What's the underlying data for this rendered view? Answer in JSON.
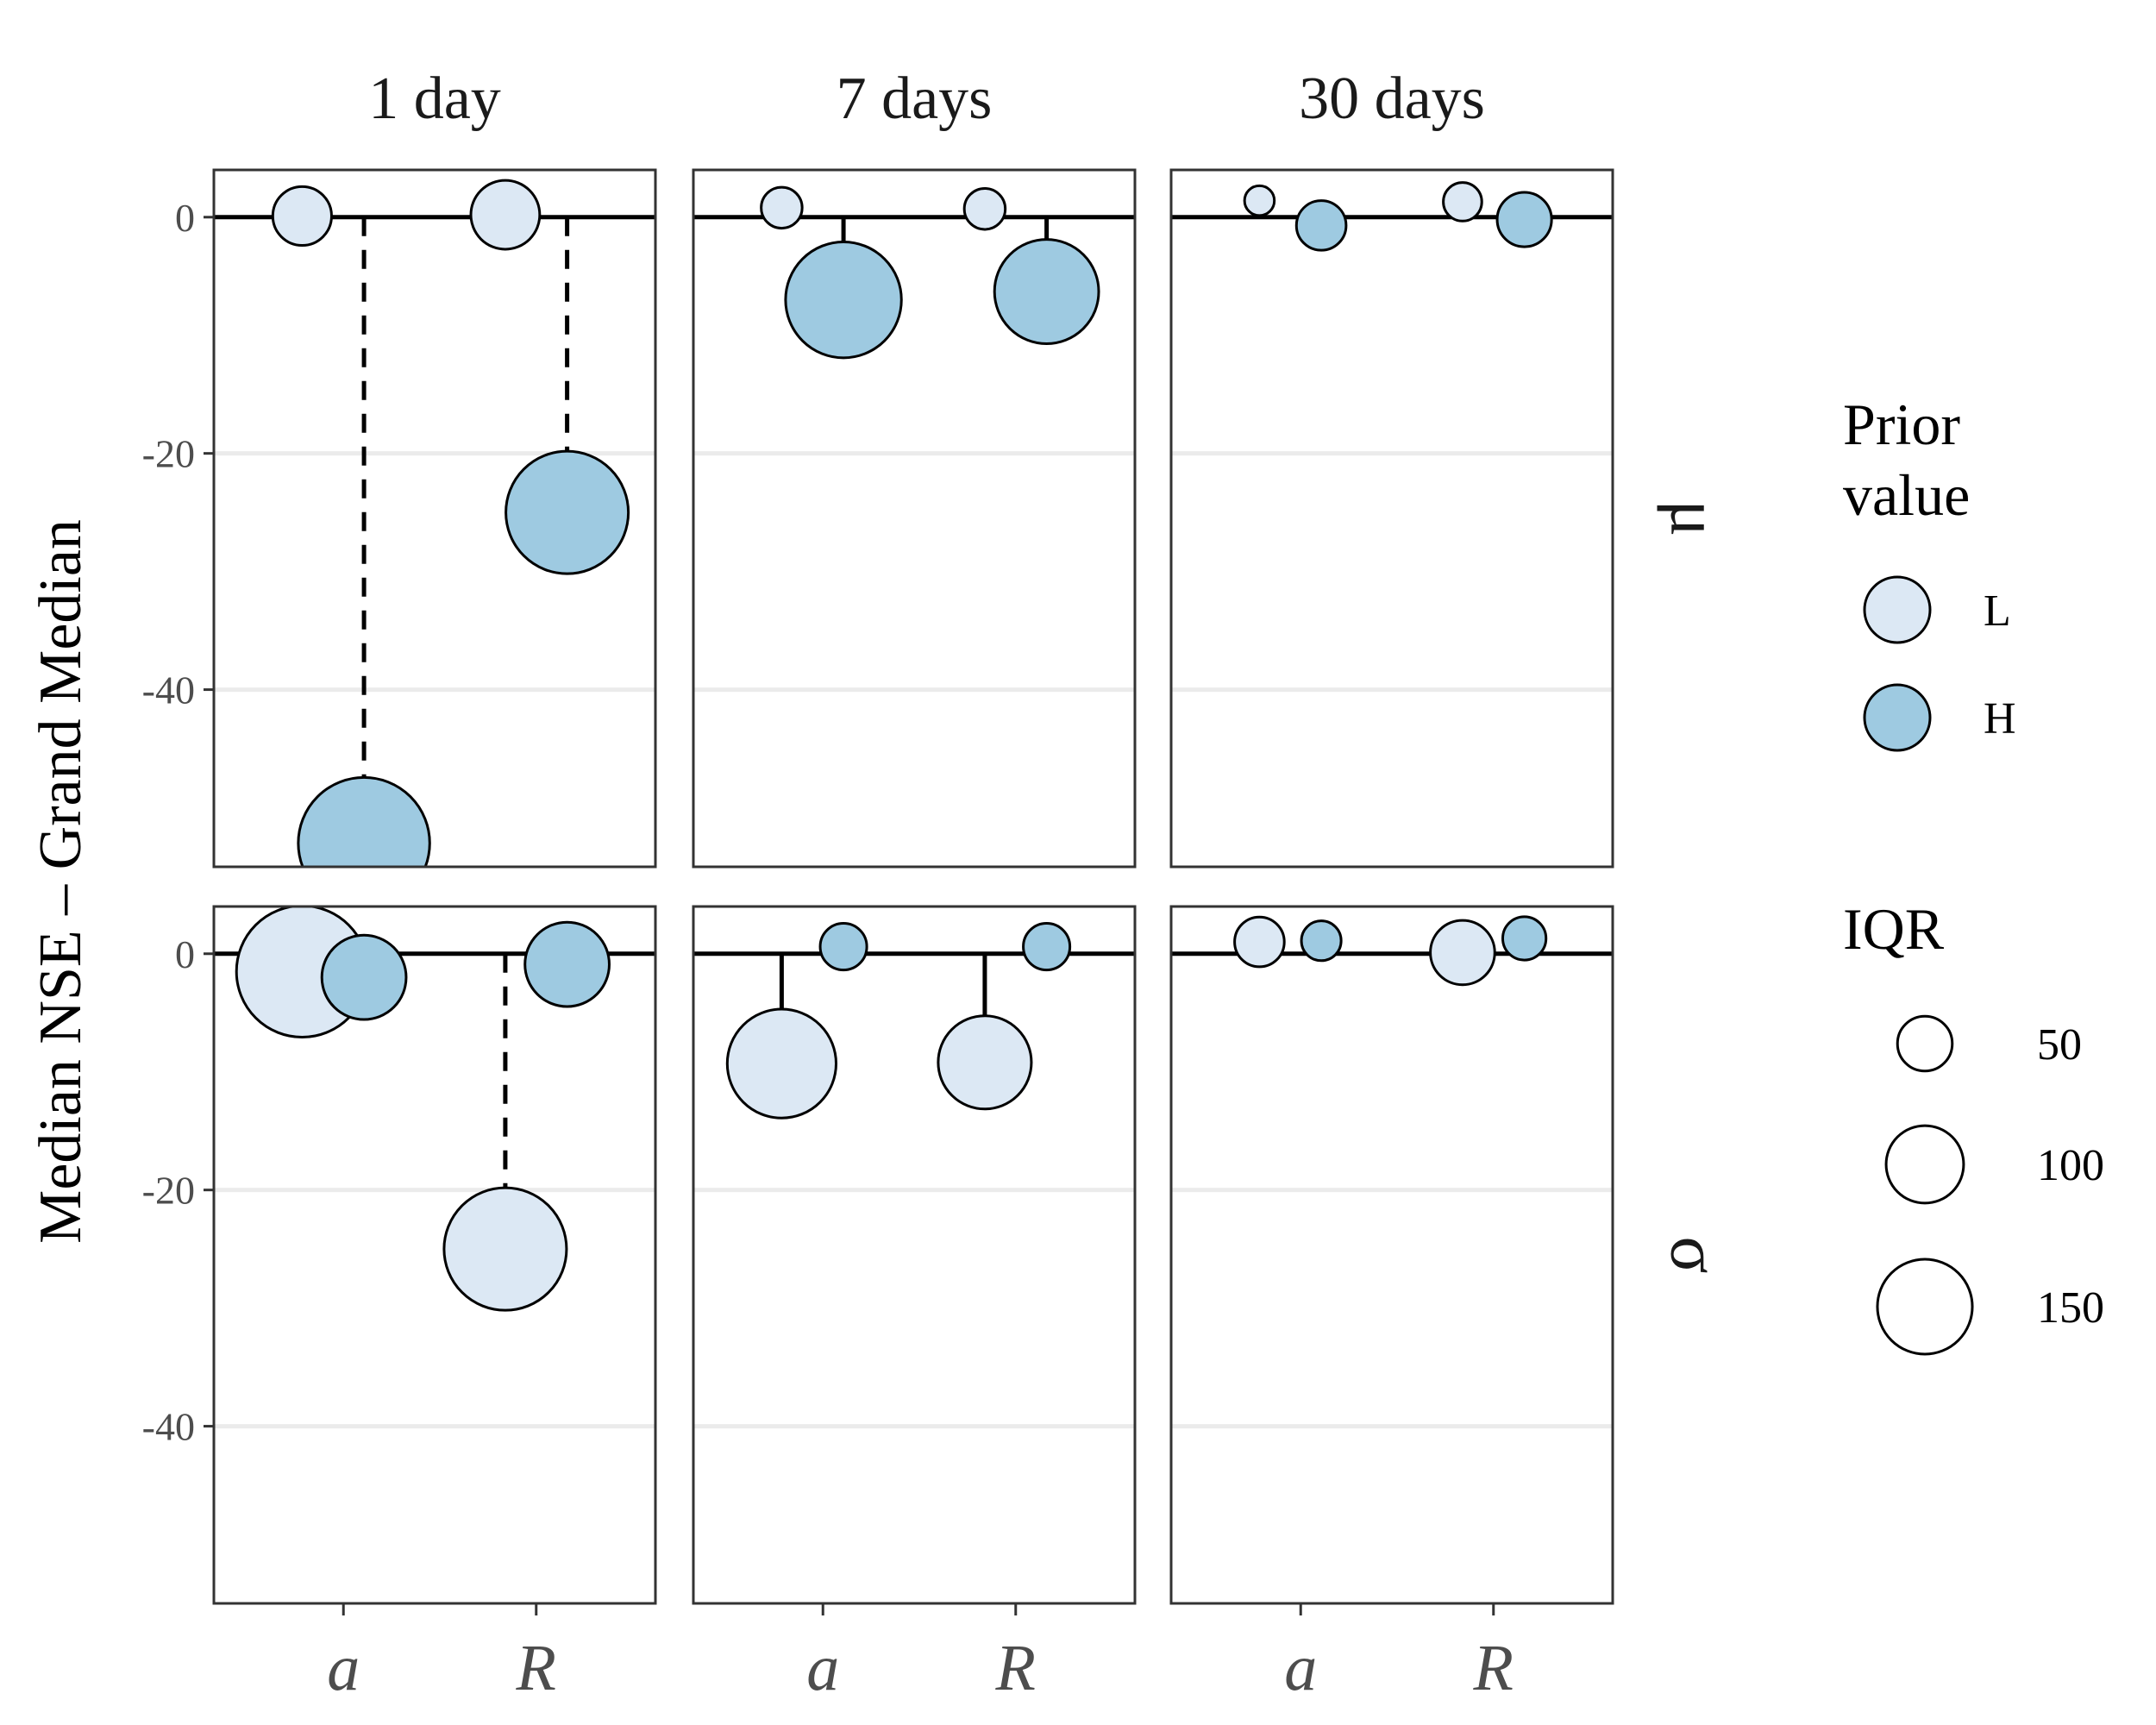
{
  "chart_data": {
    "type": "scatter",
    "title": "",
    "ylabel": "Median NSE – Grand Median",
    "xlabel": "",
    "ylim": [
      -55,
      4
    ],
    "yticks": [
      0,
      -20,
      -40
    ],
    "ytick_labels": [
      "0",
      "-20",
      "-40"
    ],
    "x_categories": [
      "a",
      "R"
    ],
    "columns": [
      "1 day",
      "7 days",
      "30 days"
    ],
    "rows": [
      "μ",
      "σ"
    ],
    "grid": true,
    "legend_placement": "right",
    "colors": {
      "L": "#dce8f4",
      "H": "#9ecae1"
    },
    "legend_fill": {
      "title": "Prior value",
      "title_lines": [
        "Prior",
        "value"
      ],
      "entries": [
        {
          "key": "L",
          "label": "L"
        },
        {
          "key": "H",
          "label": "H"
        }
      ]
    },
    "legend_size": {
      "title": "IQR",
      "entries": [
        {
          "value": 50,
          "label": "50"
        },
        {
          "value": 100,
          "label": "100"
        },
        {
          "value": 150,
          "label": "150"
        }
      ]
    },
    "panels": [
      {
        "row": "μ",
        "col": "1 day",
        "points": [
          {
            "x": "a",
            "prior": "L",
            "y": 0.1,
            "iqr": 35
          },
          {
            "x": "a",
            "prior": "H",
            "y": -53,
            "iqr": 175
          },
          {
            "x": "R",
            "prior": "L",
            "y": 0.2,
            "iqr": 48
          },
          {
            "x": "R",
            "prior": "H",
            "y": -25,
            "iqr": 152
          }
        ]
      },
      {
        "row": "μ",
        "col": "7 days",
        "points": [
          {
            "x": "a",
            "prior": "L",
            "y": 0.8,
            "iqr": 17
          },
          {
            "x": "a",
            "prior": "H",
            "y": -7,
            "iqr": 136
          },
          {
            "x": "R",
            "prior": "L",
            "y": 0.7,
            "iqr": 17
          },
          {
            "x": "R",
            "prior": "H",
            "y": -6.3,
            "iqr": 110
          }
        ]
      },
      {
        "row": "μ",
        "col": "30 days",
        "points": [
          {
            "x": "a",
            "prior": "L",
            "y": 1.4,
            "iqr": 9
          },
          {
            "x": "a",
            "prior": "H",
            "y": -0.7,
            "iqr": 25
          },
          {
            "x": "R",
            "prior": "L",
            "y": 1.3,
            "iqr": 15
          },
          {
            "x": "R",
            "prior": "H",
            "y": -0.2,
            "iqr": 30
          }
        ]
      },
      {
        "row": "σ",
        "col": "1 day",
        "points": [
          {
            "x": "a",
            "prior": "L",
            "y": -1.5,
            "iqr": 175
          },
          {
            "x": "a",
            "prior": "H",
            "y": -2.0,
            "iqr": 72
          },
          {
            "x": "R",
            "prior": "L",
            "y": -25,
            "iqr": 152
          },
          {
            "x": "R",
            "prior": "H",
            "y": -0.9,
            "iqr": 72
          }
        ]
      },
      {
        "row": "σ",
        "col": "7 days",
        "points": [
          {
            "x": "a",
            "prior": "L",
            "y": -9.3,
            "iqr": 120
          },
          {
            "x": "a",
            "prior": "H",
            "y": 0.6,
            "iqr": 22
          },
          {
            "x": "R",
            "prior": "L",
            "y": -9.2,
            "iqr": 88
          },
          {
            "x": "R",
            "prior": "H",
            "y": 0.6,
            "iqr": 22
          }
        ]
      },
      {
        "row": "σ",
        "col": "30 days",
        "points": [
          {
            "x": "a",
            "prior": "L",
            "y": 1.0,
            "iqr": 25
          },
          {
            "x": "a",
            "prior": "H",
            "y": 1.1,
            "iqr": 16
          },
          {
            "x": "R",
            "prior": "L",
            "y": 0.1,
            "iqr": 42
          },
          {
            "x": "R",
            "prior": "H",
            "y": 1.3,
            "iqr": 19
          }
        ]
      }
    ]
  }
}
